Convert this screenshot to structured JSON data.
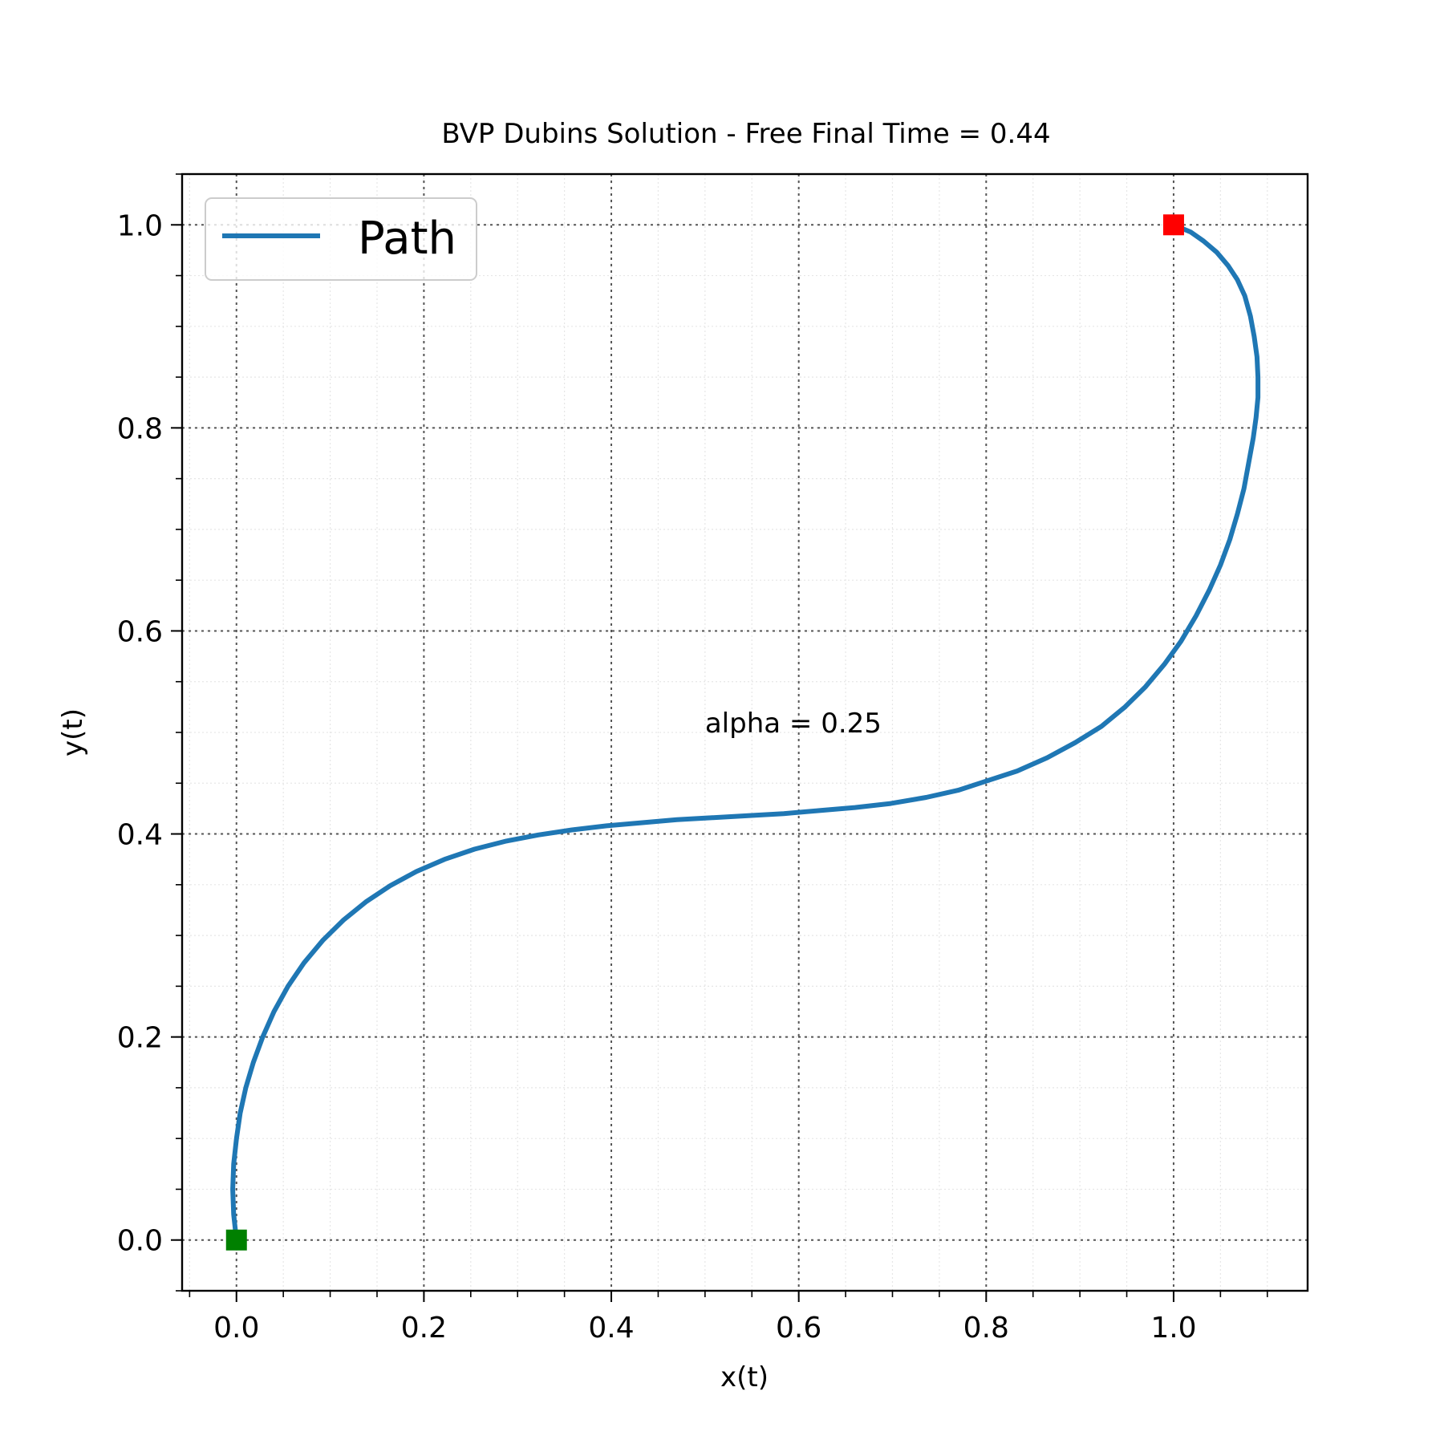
{
  "chart_data": {
    "type": "line",
    "title": "BVP Dubins Solution - Free Final Time = 0.44",
    "xlabel": "x(t)",
    "ylabel": "y(t)",
    "xlim": [
      -0.058,
      1.143
    ],
    "ylim": [
      -0.05,
      1.05
    ],
    "xticks": [
      0.0,
      0.2,
      0.4,
      0.6,
      0.8,
      1.0
    ],
    "yticks": [
      0.0,
      0.2,
      0.4,
      0.6,
      0.8,
      1.0
    ],
    "xtick_labels": [
      "0.0",
      "0.2",
      "0.4",
      "0.6",
      "0.8",
      "1.0"
    ],
    "ytick_labels": [
      "0.0",
      "0.2",
      "0.4",
      "0.6",
      "0.8",
      "1.0"
    ],
    "minor_tick_step": 0.05,
    "grid": "major dotted, minor dotted light",
    "legend": {
      "placement": "top-left",
      "entries": [
        "Path"
      ]
    },
    "annotation": {
      "text": "alpha = 0.25",
      "x": 0.5,
      "y": 0.5
    },
    "series": [
      {
        "name": "Path",
        "color": "#1f77b4",
        "x": [
          0.0,
          -0.003,
          -0.004,
          -0.003,
          0.0,
          0.004,
          0.01,
          0.018,
          0.028,
          0.04,
          0.055,
          0.072,
          0.092,
          0.114,
          0.138,
          0.164,
          0.192,
          0.222,
          0.254,
          0.288,
          0.322,
          0.358,
          0.395,
          0.432,
          0.47,
          0.508,
          0.546,
          0.584,
          0.622,
          0.66,
          0.698,
          0.736,
          0.77,
          0.8,
          0.833,
          0.865,
          0.895,
          0.923,
          0.948,
          0.97,
          0.99,
          1.008,
          1.024,
          1.038,
          1.05,
          1.06,
          1.068,
          1.075,
          1.08,
          1.085,
          1.088,
          1.09,
          1.09,
          1.089,
          1.086,
          1.082,
          1.076,
          1.068,
          1.058,
          1.046,
          1.032,
          1.018,
          1.0
        ],
        "y": [
          0.0,
          0.025,
          0.05,
          0.075,
          0.1,
          0.125,
          0.15,
          0.175,
          0.2,
          0.225,
          0.25,
          0.273,
          0.295,
          0.315,
          0.333,
          0.349,
          0.363,
          0.375,
          0.385,
          0.393,
          0.399,
          0.404,
          0.408,
          0.411,
          0.414,
          0.416,
          0.418,
          0.42,
          0.423,
          0.426,
          0.43,
          0.436,
          0.443,
          0.452,
          0.462,
          0.475,
          0.49,
          0.506,
          0.525,
          0.545,
          0.567,
          0.59,
          0.615,
          0.64,
          0.665,
          0.69,
          0.715,
          0.74,
          0.765,
          0.79,
          0.81,
          0.83,
          0.85,
          0.87,
          0.89,
          0.91,
          0.93,
          0.946,
          0.96,
          0.973,
          0.984,
          0.993,
          1.0
        ]
      }
    ],
    "markers": [
      {
        "label": "start",
        "x": 0.0,
        "y": 0.0,
        "color": "#008000",
        "shape": "square"
      },
      {
        "label": "end",
        "x": 1.0,
        "y": 1.0,
        "color": "#ff0000",
        "shape": "square"
      }
    ]
  }
}
